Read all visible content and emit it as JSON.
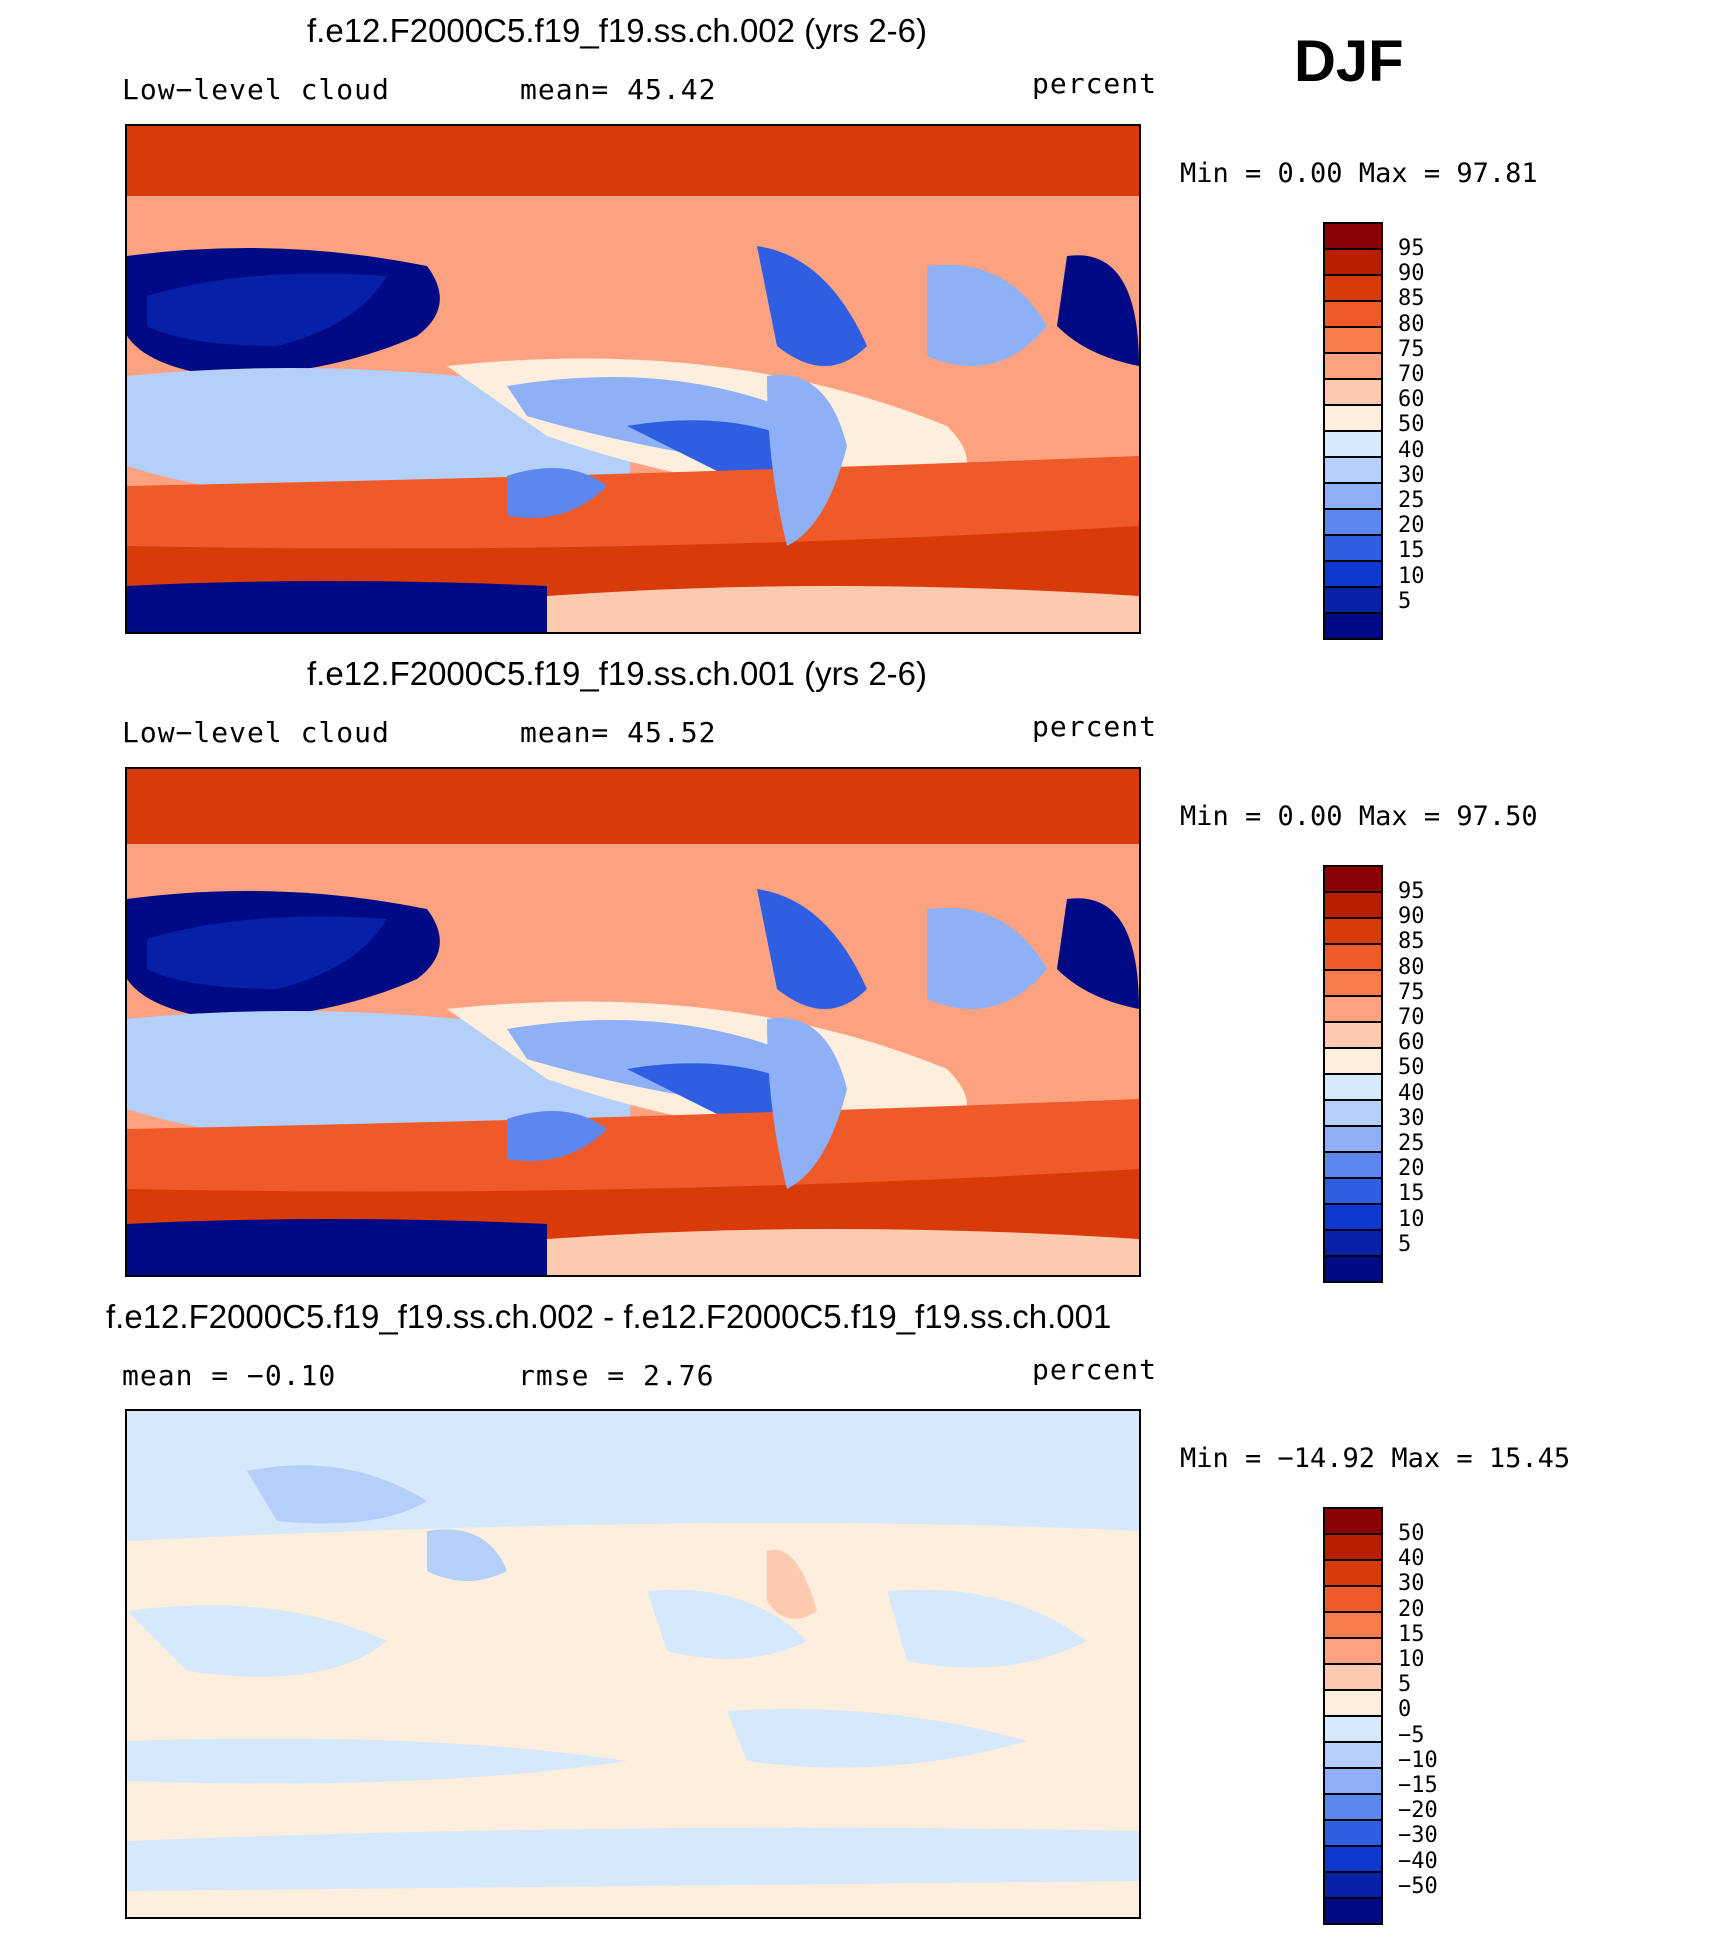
{
  "season": "DJF",
  "panels": [
    {
      "title": "f.e12.F2000C5.f19_f19.ss.ch.002 (yrs 2-6)",
      "left_label": "Low−level cloud",
      "center_label": "mean=   45.42",
      "units": "percent",
      "range_text": "Min =     0.00 Max =   97.81",
      "colorbar_labels": [
        "95",
        "90",
        "85",
        "80",
        "75",
        "70",
        "60",
        "50",
        "40",
        "30",
        "25",
        "20",
        "15",
        "10",
        "5"
      ]
    },
    {
      "title": "f.e12.F2000C5.f19_f19.ss.ch.001 (yrs 2-6)",
      "left_label": "Low−level cloud",
      "center_label": "mean=   45.52",
      "units": "percent",
      "range_text": "Min =     0.00 Max =   97.50",
      "colorbar_labels": [
        "95",
        "90",
        "85",
        "80",
        "75",
        "70",
        "60",
        "50",
        "40",
        "30",
        "25",
        "20",
        "15",
        "10",
        "5"
      ]
    },
    {
      "title": "f.e12.F2000C5.f19_f19.ss.ch.002 - f.e12.F2000C5.f19_f19.ss.ch.001",
      "left_label": "mean =   −0.10",
      "center_label": "rmse =     2.76",
      "units": "percent",
      "range_text": "Min = −14.92 Max =   15.45",
      "colorbar_labels": [
        "50",
        "40",
        "30",
        "20",
        "15",
        "10",
        "5",
        "0",
        "−5",
        "−10",
        "−15",
        "−20",
        "−30",
        "−40",
        "−50"
      ]
    }
  ],
  "colors": {
    "scale": [
      "#8b0000",
      "#b81e00",
      "#d93a0a",
      "#ef5a2a",
      "#f87d4e",
      "#fca280",
      "#fdcab0",
      "#fdeedd",
      "#d6e8fb",
      "#b3cffa",
      "#8db0f7",
      "#5d86ef",
      "#2f5ee3",
      "#0d38d0",
      "#0620a8",
      "#000a85"
    ],
    "land_outline": "#000000"
  }
}
